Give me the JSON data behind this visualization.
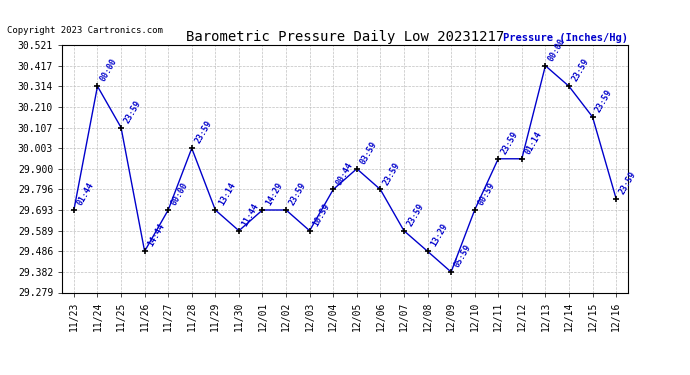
{
  "title": "Barometric Pressure Daily Low 20231217",
  "ylabel": "Pressure (Inches/Hg)",
  "copyright": "Copyright 2023 Cartronics.com",
  "bg_color": "#ffffff",
  "line_color": "#0000cc",
  "grid_color": "#c0c0c0",
  "ylim": [
    29.279,
    30.521
  ],
  "ytick_vals": [
    29.279,
    29.382,
    29.486,
    29.589,
    29.693,
    29.796,
    29.9,
    30.003,
    30.107,
    30.21,
    30.314,
    30.417,
    30.521
  ],
  "x_labels": [
    "11/23",
    "11/24",
    "11/25",
    "11/26",
    "11/27",
    "11/28",
    "11/29",
    "11/30",
    "12/01",
    "12/02",
    "12/03",
    "12/04",
    "12/05",
    "12/06",
    "12/07",
    "12/08",
    "12/09",
    "12/10",
    "12/11",
    "12/12",
    "12/13",
    "12/14",
    "12/15",
    "12/16"
  ],
  "data_points": [
    [
      0,
      29.693,
      "01:44"
    ],
    [
      1,
      30.314,
      "00:00"
    ],
    [
      2,
      30.107,
      "23:59"
    ],
    [
      3,
      29.486,
      "14:44"
    ],
    [
      4,
      29.693,
      "00:00"
    ],
    [
      5,
      30.003,
      "23:59"
    ],
    [
      6,
      29.693,
      "13:14"
    ],
    [
      7,
      29.589,
      "11:44"
    ],
    [
      8,
      29.693,
      "14:29"
    ],
    [
      9,
      29.693,
      "23:59"
    ],
    [
      10,
      29.589,
      "10:59"
    ],
    [
      11,
      29.796,
      "00:44"
    ],
    [
      12,
      29.9,
      "03:59"
    ],
    [
      13,
      29.796,
      "23:59"
    ],
    [
      14,
      29.589,
      "23:59"
    ],
    [
      15,
      29.486,
      "13:29"
    ],
    [
      16,
      29.382,
      "05:59"
    ],
    [
      17,
      29.693,
      "00:59"
    ],
    [
      18,
      29.95,
      "23:59"
    ],
    [
      19,
      29.95,
      "01:14"
    ],
    [
      20,
      30.417,
      "00:00"
    ],
    [
      21,
      30.314,
      "23:59"
    ],
    [
      22,
      30.16,
      "23:59"
    ],
    [
      23,
      29.75,
      "23:59"
    ]
  ]
}
